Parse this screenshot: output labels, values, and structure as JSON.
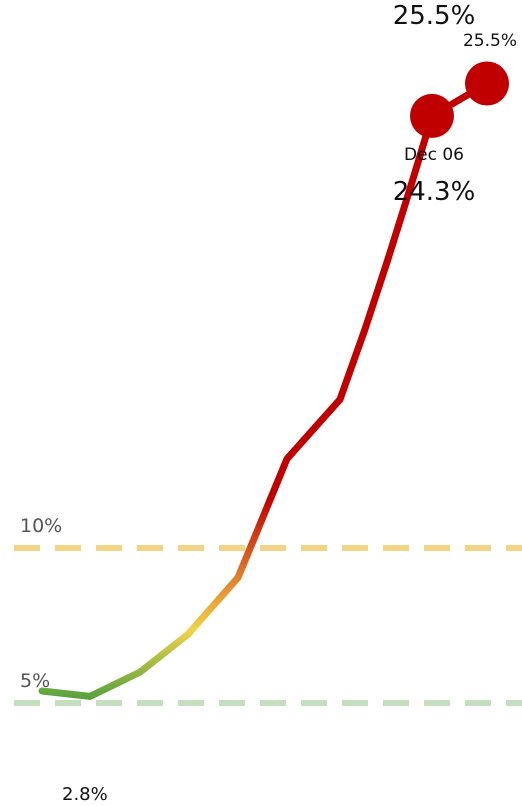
{
  "chart_data": {
    "type": "line",
    "title": "",
    "xlabel": "",
    "ylabel": "",
    "ylim": [
      0,
      26
    ],
    "grid": false,
    "series": [
      {
        "values": [
          3.0,
          2.8,
          3.7,
          5.1,
          7.2,
          11.6,
          13.8,
          16.4,
          19.0,
          21.6,
          24.3,
          25.5
        ],
        "color_scale": {
          "low": "#4e9f3d",
          "mid": "#f1d34a",
          "high": "#c00000"
        }
      }
    ],
    "reference_lines": [
      {
        "value": 10,
        "label": "10%",
        "color": "#f0d07a"
      },
      {
        "value": 5,
        "label": "5%",
        "color": "#bfdcb8"
      }
    ],
    "annotations": {
      "start_label": "2.8%",
      "highlight_date": "Dec 06",
      "highlight_value": "24.3%",
      "last_value": "25.5%",
      "top_value": "25.5%"
    },
    "marker_color": "#c00000"
  }
}
